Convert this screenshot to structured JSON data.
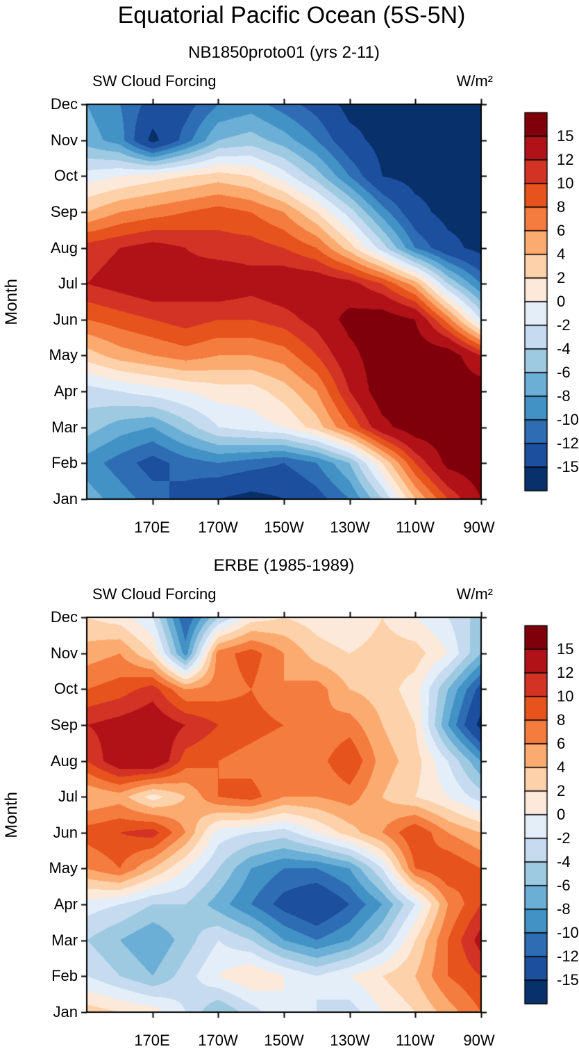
{
  "page": {
    "title": "Equatorial Pacific Ocean (5S-5N)"
  },
  "panels": [
    {
      "subtitle": "NB1850proto01 (yrs 2-11)",
      "header_left": "SW Cloud Forcing",
      "header_right": "W/m²",
      "ylabel": "Month"
    },
    {
      "subtitle": "ERBE (1985-1989)",
      "header_left": "SW Cloud Forcing",
      "header_right": "W/m²",
      "ylabel": "Month"
    }
  ],
  "chart_data": [
    {
      "type": "heatmap",
      "title": "NB1850proto01 (yrs 2-11)",
      "variable": "SW Cloud Forcing",
      "units": "W/m²",
      "ylabel": "Month",
      "x_range": [
        150,
        270
      ],
      "x_ticks": [
        170,
        190,
        210,
        230,
        250,
        270
      ],
      "x_tick_labels": [
        "170E",
        "170W",
        "150W",
        "130W",
        "110W",
        "90W"
      ],
      "y_categories": [
        "Jan",
        "Feb",
        "Mar",
        "Apr",
        "May",
        "Jun",
        "Jul",
        "Aug",
        "Sep",
        "Oct",
        "Nov",
        "Dec"
      ],
      "levels": [
        -15,
        -12,
        -10,
        -8,
        -6,
        -4,
        -2,
        0,
        2,
        4,
        6,
        8,
        10,
        12,
        15
      ],
      "colorbar_labels": [
        "15",
        "12",
        "10",
        "8",
        "6",
        "4",
        "2",
        "0",
        "-2",
        "-4",
        "-6",
        "-8",
        "-10",
        "-12",
        "-15"
      ],
      "colors": [
        "#08306b",
        "#1c4f9e",
        "#2e6db4",
        "#4292c6",
        "#6baed6",
        "#9ecae1",
        "#c6dbef",
        "#e3eef8",
        "#fde9d9",
        "#fdd1a9",
        "#fcab70",
        "#f57c3f",
        "#e6531c",
        "#d33325",
        "#b01218",
        "#7f000b"
      ],
      "lons": [
        150,
        160,
        170,
        180,
        190,
        200,
        210,
        220,
        230,
        240,
        250,
        260,
        270
      ],
      "values_row_order": "Jan to Dec",
      "values": [
        [
          -7,
          -9,
          -11,
          -13,
          -15,
          -16,
          -15,
          -13,
          -10,
          -4,
          4,
          10,
          15
        ],
        [
          -9,
          -11,
          -13,
          -11,
          -10,
          -11,
          -12,
          -10,
          -6,
          2,
          10,
          16,
          17
        ],
        [
          -5,
          -7,
          -8,
          -5,
          -2,
          -1,
          0,
          3,
          8,
          14,
          17,
          17,
          17
        ],
        [
          -3,
          -2,
          -1,
          0,
          1,
          1,
          3,
          6,
          12,
          17,
          17,
          17,
          17
        ],
        [
          3,
          5,
          6,
          7,
          6,
          6,
          7,
          10,
          14,
          17,
          17,
          17,
          12
        ],
        [
          8,
          9,
          10,
          11,
          10,
          10,
          11,
          13,
          16,
          17,
          15,
          7,
          -2
        ],
        [
          12,
          13,
          14,
          13,
          14,
          13,
          14,
          14,
          13,
          10,
          5,
          -4,
          -10
        ],
        [
          11,
          12,
          13,
          12,
          11,
          11,
          10,
          8,
          3,
          -3,
          -10,
          -14,
          -16
        ],
        [
          4,
          6,
          7,
          8,
          9,
          8,
          6,
          2,
          -3,
          -9,
          -14,
          -16,
          -16
        ],
        [
          -1,
          0,
          1,
          2,
          3,
          2,
          -1,
          -5,
          -10,
          -15,
          -16,
          -16,
          -16
        ],
        [
          -7,
          -9,
          -16,
          -11,
          -6,
          -5,
          -7,
          -10,
          -14,
          -16,
          -16,
          -16,
          -16
        ],
        [
          -8,
          -10,
          -13,
          -13,
          -10,
          -9,
          -11,
          -13,
          -16,
          -16,
          -16,
          -16,
          -16
        ]
      ]
    },
    {
      "type": "heatmap",
      "title": "ERBE (1985-1989)",
      "variable": "SW Cloud Forcing",
      "units": "W/m²",
      "ylabel": "Month",
      "x_range": [
        150,
        270
      ],
      "x_ticks": [
        170,
        190,
        210,
        230,
        250,
        270
      ],
      "x_tick_labels": [
        "170E",
        "170W",
        "150W",
        "130W",
        "110W",
        "90W"
      ],
      "y_categories": [
        "Jan",
        "Feb",
        "Mar",
        "Apr",
        "May",
        "Jun",
        "Jul",
        "Aug",
        "Sep",
        "Oct",
        "Nov",
        "Dec"
      ],
      "levels": [
        -15,
        -12,
        -10,
        -8,
        -6,
        -4,
        -2,
        0,
        2,
        4,
        6,
        8,
        10,
        12,
        15
      ],
      "colorbar_labels": [
        "15",
        "12",
        "10",
        "8",
        "6",
        "4",
        "2",
        "0",
        "-2",
        "-4",
        "-6",
        "-8",
        "-10",
        "-12",
        "-15"
      ],
      "colors": [
        "#08306b",
        "#1c4f9e",
        "#2e6db4",
        "#4292c6",
        "#6baed6",
        "#9ecae1",
        "#c6dbef",
        "#e3eef8",
        "#fde9d9",
        "#fdd1a9",
        "#fcab70",
        "#f57c3f",
        "#e6531c",
        "#d33325",
        "#b01218",
        "#7f000b"
      ],
      "lons": [
        150,
        160,
        170,
        180,
        190,
        200,
        210,
        220,
        230,
        240,
        250,
        260,
        270
      ],
      "values_row_order": "Jan to Dec",
      "values": [
        [
          3,
          2,
          1,
          -2,
          -6,
          -3,
          0,
          -2,
          -3,
          0,
          2,
          5,
          8
        ],
        [
          -2,
          -4,
          -6,
          -3,
          0,
          2,
          0,
          -2,
          0,
          2,
          4,
          8,
          10
        ],
        [
          -4,
          -6,
          -8,
          -5,
          -2,
          -4,
          -8,
          -10,
          -8,
          -4,
          2,
          8,
          13
        ],
        [
          -1,
          -2,
          -4,
          -4,
          -7,
          -10,
          -13,
          -15,
          -12,
          -8,
          -2,
          6,
          10
        ],
        [
          6,
          8,
          4,
          0,
          -4,
          -8,
          -10,
          -10,
          -8,
          -2,
          8,
          10,
          8
        ],
        [
          9,
          10,
          11,
          6,
          -1,
          -2,
          -3,
          0,
          3,
          6,
          10,
          6,
          4
        ],
        [
          4,
          5,
          1,
          4,
          8,
          9,
          6,
          6,
          7,
          4,
          2,
          0,
          -3
        ],
        [
          10,
          14,
          15,
          9,
          8,
          7,
          6,
          7,
          10,
          5,
          3,
          -2,
          -8
        ],
        [
          12,
          13,
          14,
          12,
          10,
          9,
          8,
          6,
          7,
          4,
          2,
          -8,
          -16
        ],
        [
          8,
          9,
          11,
          6,
          7,
          8,
          6,
          7,
          4,
          3,
          1,
          -6,
          -13
        ],
        [
          5,
          6,
          2,
          -9,
          7,
          9,
          6,
          3,
          2,
          3,
          3,
          0,
          -6
        ],
        [
          2,
          1,
          -2,
          -12,
          -4,
          1,
          2,
          1,
          0,
          2,
          0,
          -2,
          -5
        ]
      ]
    }
  ]
}
